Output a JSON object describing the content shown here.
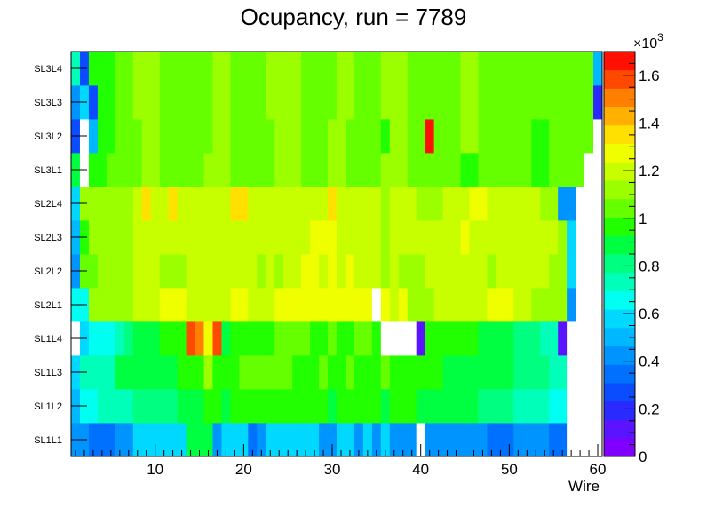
{
  "chart_data": {
    "type": "heatmap",
    "title": "Ocupancy, run = 7789",
    "xlabel": "Wire",
    "ylabel": "",
    "xlim": [
      0.5,
      60.5
    ],
    "x_ticks": [
      "10",
      "20",
      "30",
      "40",
      "50",
      "60"
    ],
    "y_categories": [
      "SL1L1",
      "SL1L2",
      "SL1L3",
      "SL1L4",
      "SL2L1",
      "SL2L2",
      "SL2L3",
      "SL2L4",
      "SL3L1",
      "SL3L2",
      "SL3L3",
      "SL3L4"
    ],
    "colorbar": {
      "range": [
        0,
        1700
      ],
      "ticks": [
        "0",
        "0.2",
        "0.4",
        "0.6",
        "0.8",
        "1",
        "1.2",
        "1.4",
        "1.6"
      ],
      "multiplier": "×10",
      "exponent": "3",
      "palette": [
        "#7f00ff",
        "#5a14ff",
        "#2a2aff",
        "#0a4cff",
        "#0070ff",
        "#0094ff",
        "#00b8ff",
        "#00d8ff",
        "#00fff0",
        "#00ffb8",
        "#00ff80",
        "#00ff40",
        "#22ff00",
        "#66ff00",
        "#9cff00",
        "#c8ff00",
        "#f0ff00",
        "#ffe000",
        "#ffb000",
        "#ff8000",
        "#ff4800",
        "#ff1000"
      ]
    },
    "rows": [
      {
        "name": "SL1L1",
        "values": [
          450,
          450,
          380,
          380,
          380,
          450,
          450,
          600,
          600,
          600,
          600,
          600,
          600,
          900,
          900,
          900,
          450,
          600,
          600,
          600,
          380,
          450,
          600,
          600,
          600,
          600,
          600,
          600,
          450,
          450,
          600,
          600,
          450,
          600,
          450,
          600,
          450,
          450,
          450,
          0,
          450,
          450,
          450,
          450,
          450,
          450,
          450,
          380,
          380,
          380,
          450,
          450,
          450,
          450,
          380,
          380,
          0,
          0,
          0,
          0
        ]
      },
      {
        "name": "SL1L2",
        "values": [
          500,
          650,
          650,
          700,
          700,
          700,
          700,
          800,
          800,
          800,
          800,
          800,
          900,
          900,
          900,
          1000,
          1000,
          900,
          950,
          950,
          950,
          1000,
          1000,
          1000,
          950,
          950,
          1000,
          1000,
          1000,
          900,
          950,
          950,
          1000,
          950,
          950,
          900,
          950,
          950,
          950,
          900,
          900,
          900,
          850,
          850,
          850,
          850,
          800,
          800,
          800,
          800,
          750,
          750,
          750,
          750,
          650,
          650,
          0,
          0,
          0,
          0
        ]
      },
      {
        "name": "SL1L3",
        "values": [
          550,
          700,
          750,
          750,
          750,
          850,
          850,
          850,
          850,
          900,
          900,
          900,
          950,
          950,
          950,
          1150,
          1000,
          1000,
          1000,
          1050,
          1050,
          1050,
          1050,
          1050,
          1050,
          1000,
          1000,
          1000,
          1050,
          1000,
          1000,
          1050,
          1000,
          1000,
          1000,
          1050,
          950,
          950,
          950,
          1000,
          1000,
          1000,
          900,
          900,
          900,
          850,
          850,
          850,
          850,
          850,
          800,
          800,
          800,
          800,
          700,
          700,
          0,
          0,
          0,
          0
        ]
      },
      {
        "name": "SL1L4",
        "values": [
          0,
          600,
          650,
          650,
          650,
          750,
          800,
          850,
          850,
          850,
          950,
          950,
          950,
          1600,
          1500,
          1300,
          1600,
          850,
          950,
          950,
          950,
          1000,
          1000,
          1050,
          1050,
          1050,
          1050,
          1000,
          1000,
          1050,
          1000,
          1000,
          1050,
          1050,
          1000,
          0,
          0,
          0,
          0,
          100,
          950,
          950,
          1000,
          1000,
          1000,
          950,
          900,
          900,
          850,
          850,
          800,
          800,
          800,
          750,
          750,
          100,
          0,
          0,
          0,
          0
        ]
      },
      {
        "name": "SL2L1",
        "values": [
          650,
          650,
          1150,
          1150,
          1150,
          1150,
          1150,
          1200,
          1200,
          1200,
          1250,
          1250,
          1250,
          1200,
          1200,
          1200,
          1200,
          1200,
          1250,
          1250,
          1200,
          1200,
          1200,
          1250,
          1250,
          1250,
          1250,
          1250,
          1300,
          1300,
          1300,
          1250,
          1250,
          1250,
          0,
          1250,
          1200,
          1300,
          1150,
          1150,
          1150,
          1200,
          1200,
          1200,
          1200,
          1200,
          1200,
          1250,
          1250,
          1250,
          1200,
          1200,
          1150,
          1150,
          1150,
          1150,
          450,
          0,
          0,
          0
        ]
      },
      {
        "name": "SL2L2",
        "values": [
          400,
          1050,
          1050,
          1150,
          1150,
          1150,
          1150,
          1200,
          1200,
          1200,
          1150,
          1150,
          1150,
          1200,
          1200,
          1200,
          1200,
          1200,
          1200,
          1200,
          1200,
          1150,
          1200,
          1150,
          1200,
          1200,
          1250,
          1300,
          1200,
          1300,
          1200,
          1300,
          1200,
          1200,
          1200,
          1150,
          1200,
          1150,
          1150,
          1100,
          1200,
          1200,
          1200,
          1200,
          1200,
          1200,
          1200,
          1150,
          1200,
          1200,
          1200,
          1200,
          1200,
          1200,
          1150,
          1150,
          550,
          0,
          0,
          0
        ]
      },
      {
        "name": "SL2L3",
        "values": [
          500,
          1000,
          1100,
          1150,
          1150,
          1150,
          1150,
          1200,
          1200,
          1200,
          1200,
          1200,
          1200,
          1200,
          1200,
          1200,
          1200,
          1200,
          1200,
          1200,
          1200,
          1200,
          1200,
          1200,
          1200,
          1200,
          1200,
          1300,
          1300,
          1300,
          1200,
          1200,
          1200,
          1200,
          1200,
          1100,
          1200,
          1200,
          1200,
          1200,
          1200,
          1200,
          1200,
          1200,
          1300,
          1200,
          1200,
          1200,
          1200,
          1200,
          1200,
          1200,
          1200,
          1200,
          1200,
          1100,
          600,
          0,
          0,
          0
        ]
      },
      {
        "name": "SL2L4",
        "values": [
          550,
          1100,
          1100,
          1150,
          1150,
          1150,
          1150,
          1200,
          1350,
          1200,
          1200,
          1350,
          1200,
          1200,
          1200,
          1200,
          1200,
          1200,
          1350,
          1350,
          1200,
          1200,
          1200,
          1200,
          1200,
          1200,
          1200,
          1200,
          1200,
          1350,
          1200,
          1200,
          1200,
          1200,
          1200,
          1150,
          1200,
          1200,
          1200,
          1150,
          1150,
          1150,
          1200,
          1200,
          1200,
          1300,
          1300,
          1200,
          1200,
          1200,
          1200,
          1200,
          1200,
          1100,
          1100,
          400,
          400,
          0,
          0,
          0
        ]
      },
      {
        "name": "SL3L1",
        "values": [
          900,
          0,
          1000,
          1000,
          1050,
          1050,
          1050,
          1050,
          1100,
          1100,
          1050,
          1050,
          1050,
          1050,
          1050,
          1100,
          1100,
          1100,
          1050,
          1050,
          1050,
          1050,
          1050,
          1100,
          1100,
          1100,
          1050,
          1050,
          1050,
          1100,
          1100,
          1050,
          1050,
          1050,
          1050,
          1100,
          1100,
          1100,
          1050,
          1050,
          1050,
          1050,
          1050,
          1050,
          1000,
          1000,
          1050,
          1050,
          1050,
          1050,
          1050,
          1050,
          1000,
          1000,
          1050,
          1050,
          1050,
          1050,
          0,
          0
        ]
      },
      {
        "name": "SL3L2",
        "values": [
          300,
          0,
          500,
          1000,
          1000,
          1050,
          1050,
          1050,
          1100,
          1100,
          1050,
          1050,
          1050,
          1050,
          1050,
          1050,
          1100,
          1100,
          1050,
          1050,
          1050,
          1050,
          1050,
          1100,
          1100,
          1100,
          1050,
          1050,
          1050,
          1100,
          1100,
          1050,
          1050,
          1050,
          1050,
          1000,
          1100,
          1100,
          1050,
          1050,
          1700,
          1050,
          1050,
          1050,
          1100,
          1100,
          1050,
          1050,
          1050,
          1050,
          1050,
          1050,
          1000,
          1000,
          1050,
          1050,
          1050,
          1050,
          1050,
          0
        ]
      },
      {
        "name": "SL3L3",
        "values": [
          450,
          600,
          250,
          950,
          1000,
          1050,
          1050,
          1100,
          1100,
          1100,
          1050,
          1050,
          1050,
          1050,
          1050,
          1050,
          1100,
          1100,
          1050,
          1050,
          1050,
          1050,
          1100,
          1100,
          1100,
          1100,
          1050,
          1050,
          1050,
          1050,
          1100,
          1100,
          1050,
          1050,
          1050,
          1100,
          1100,
          1100,
          1050,
          1050,
          1050,
          1050,
          1050,
          1050,
          1100,
          1100,
          1050,
          1050,
          1050,
          1050,
          1050,
          1050,
          1050,
          1050,
          1050,
          1050,
          1050,
          1050,
          1050,
          200
        ]
      },
      {
        "name": "SL3L4",
        "values": [
          700,
          250,
          950,
          950,
          1000,
          1050,
          1050,
          1100,
          1100,
          1100,
          1050,
          1050,
          1050,
          1050,
          1050,
          1050,
          1100,
          1100,
          1050,
          1050,
          1050,
          1050,
          1100,
          1100,
          1100,
          1100,
          1050,
          1050,
          1050,
          1050,
          1100,
          1100,
          1050,
          1050,
          1050,
          1100,
          1100,
          1100,
          1050,
          1050,
          1050,
          1050,
          1050,
          1050,
          1100,
          1100,
          1050,
          1050,
          1050,
          1050,
          1050,
          1050,
          1050,
          1050,
          1050,
          1050,
          1050,
          1050,
          1050,
          500
        ]
      }
    ]
  }
}
